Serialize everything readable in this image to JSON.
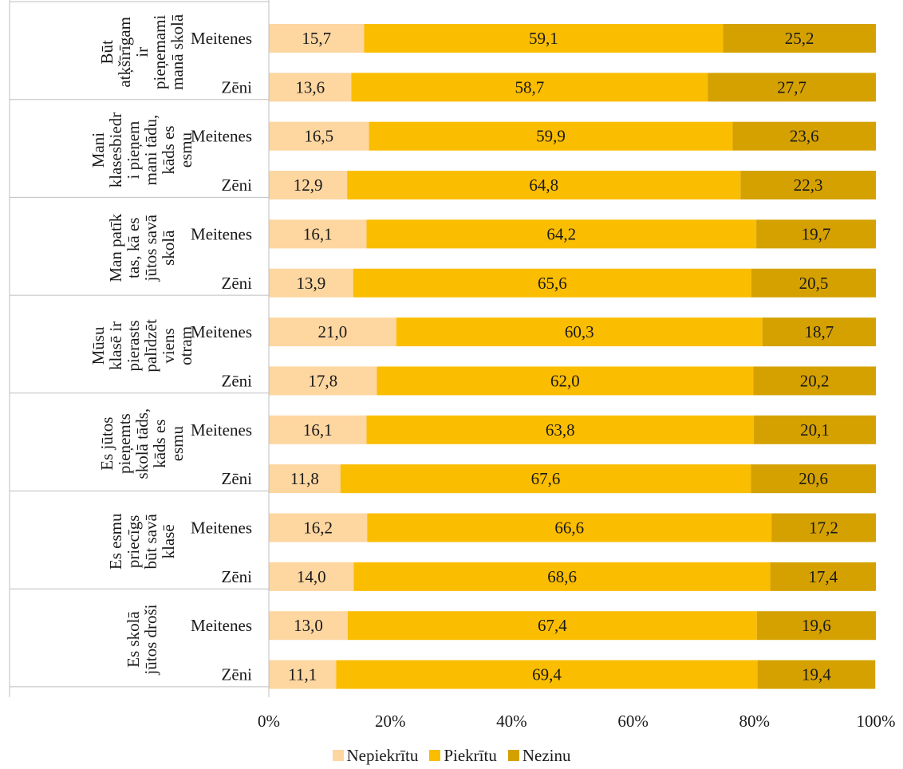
{
  "chart_data": {
    "type": "bar",
    "orientation": "horizontal",
    "stacked": true,
    "percent_stacked": true,
    "groups": [
      {
        "label": "Būt atķšīrīgam ir pieņemami manā skolā",
        "label_lines": [
          "Būt",
          "atķšīrīgam",
          "ir",
          "pieņemami",
          "manā skolā"
        ]
      },
      {
        "label": "Mani klasesbiedri pieņem mani tādu, kāds es esmu",
        "label_lines": [
          "Mani",
          "klasesbiedr",
          "i pieņem",
          "mani tādu,",
          "kāds es",
          "esmu"
        ]
      },
      {
        "label": "Man patīk tas, kā es jūtos savā skolā",
        "label_lines": [
          "Man patīk",
          "tas, kā es",
          "jūtos savā",
          "skolā"
        ]
      },
      {
        "label": "Mūsu klasē ir pierasts palīdzēt viens otram",
        "label_lines": [
          "Mūsu",
          "klasē ir",
          "pierasts",
          "palīdzēt",
          "viens",
          "otram"
        ]
      },
      {
        "label": "Es jūtos pieņemts skolā tāds, kāds es esmu",
        "label_lines": [
          "Es jūtos",
          "pieņemts",
          "skolā tāds,",
          "kāds es",
          "esmu"
        ]
      },
      {
        "label": "Es esmu priecīgs būt savā klasē",
        "label_lines": [
          "Es esmu",
          "priecīgs",
          "būt savā",
          "klasē"
        ]
      },
      {
        "label": "Es skolā jūtos droši",
        "label_lines": [
          "Es skolā",
          "jūtos droši"
        ]
      }
    ],
    "categories": [
      "Meitenes",
      "Zēni",
      "Meitenes",
      "Zēni",
      "Meitenes",
      "Zēni",
      "Meitenes",
      "Zēni",
      "Meitenes",
      "Zēni",
      "Meitenes",
      "Zēni",
      "Meitenes",
      "Zēni"
    ],
    "series": [
      {
        "name": "Nepiekrītu",
        "color": "#fdd6a0",
        "values": [
          15.7,
          13.6,
          16.5,
          12.9,
          16.1,
          13.9,
          21.0,
          17.8,
          16.1,
          11.8,
          16.2,
          14.0,
          13.0,
          11.1
        ],
        "labels": [
          "15,7",
          "13,6",
          "16,5",
          "12,9",
          "16,1",
          "13,9",
          "21,0",
          "17,8",
          "16,1",
          "11,8",
          "16,2",
          "14,0",
          "13,0",
          "11,1"
        ]
      },
      {
        "name": "Piekrītu",
        "color": "#fbbd00",
        "values": [
          59.1,
          58.7,
          59.9,
          64.8,
          64.2,
          65.6,
          60.3,
          62.0,
          63.8,
          67.6,
          66.6,
          68.6,
          67.4,
          69.4
        ],
        "labels": [
          "59,1",
          "58,7",
          "59,9",
          "64,8",
          "64,2",
          "65,6",
          "60,3",
          "62,0",
          "63,8",
          "67,6",
          "66,6",
          "68,6",
          "67,4",
          "69,4"
        ]
      },
      {
        "name": "Nezinu",
        "color": "#d5a100",
        "values": [
          25.2,
          27.7,
          23.6,
          22.3,
          19.7,
          20.5,
          18.7,
          20.2,
          20.1,
          20.6,
          17.2,
          17.4,
          19.6,
          19.4
        ],
        "labels": [
          "25,2",
          "27,7",
          "23,6",
          "22,3",
          "19,7",
          "20,5",
          "18,7",
          "20,2",
          "20,1",
          "20,6",
          "17,2",
          "17,4",
          "19,6",
          "19,4"
        ]
      }
    ],
    "xlim": [
      0,
      100
    ],
    "x_ticks": [
      0,
      20,
      40,
      60,
      80,
      100
    ],
    "x_tick_labels": [
      "0%",
      "20%",
      "40%",
      "60%",
      "80%",
      "100%"
    ],
    "grid": false,
    "legend_position": "bottom-center",
    "title": "",
    "xlabel": "",
    "ylabel": ""
  }
}
